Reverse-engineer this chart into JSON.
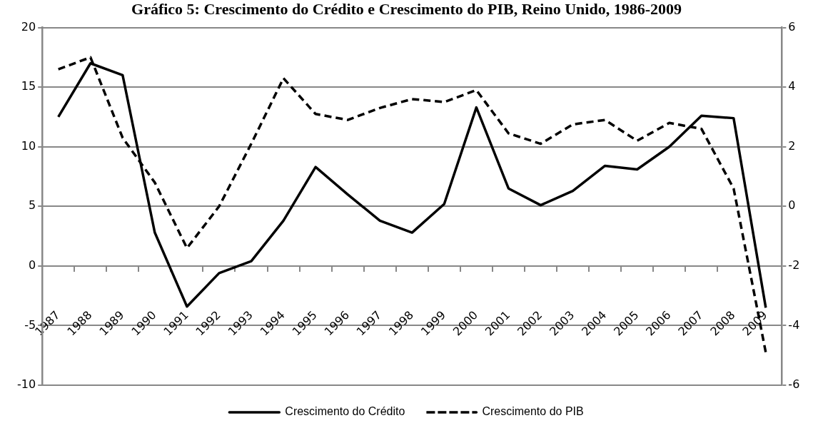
{
  "chart_data": {
    "type": "line",
    "title": "Gráfico 5: Crescimento do Crédito e Crescimento do PIB, Reino Unido, 1986-2009",
    "categories": [
      "1987",
      "1988",
      "1989",
      "1990",
      "1991",
      "1992",
      "1993",
      "1994",
      "1995",
      "1996",
      "1997",
      "1998",
      "1999",
      "2000",
      "2001",
      "2002",
      "2003",
      "2004",
      "2005",
      "2006",
      "2007",
      "2008",
      "2009"
    ],
    "series": [
      {
        "name": "Crescimento do Crédito",
        "color": "#000000",
        "line_style": "solid",
        "values": [
          12.5,
          17.0,
          16.0,
          2.8,
          -3.4,
          -0.6,
          0.4,
          3.8,
          8.3,
          6.0,
          3.8,
          2.8,
          5.2,
          13.3,
          6.5,
          5.1,
          6.3,
          8.4,
          8.1,
          10.0,
          12.6,
          12.4,
          -3.5
        ]
      },
      {
        "name": "Crescimento do PIB",
        "color": "#000000",
        "line_style": "dashed",
        "axis": "y2",
        "values": [
          4.6,
          5.0,
          2.3,
          0.8,
          -1.4,
          0.0,
          2.1,
          4.3,
          3.1,
          2.9,
          3.3,
          3.6,
          3.5,
          3.9,
          2.45,
          2.1,
          2.75,
          2.9,
          2.2,
          2.8,
          2.6,
          0.6,
          -4.9
        ]
      }
    ],
    "ylim": [
      -10,
      20
    ],
    "yticks": [
      -10,
      -5,
      0,
      5,
      10,
      15,
      20
    ],
    "y2lim": [
      -6,
      6
    ],
    "y2ticks": [
      -6,
      -4,
      -2,
      0,
      2,
      4,
      6
    ],
    "grid": "y",
    "legend": "bottom"
  }
}
